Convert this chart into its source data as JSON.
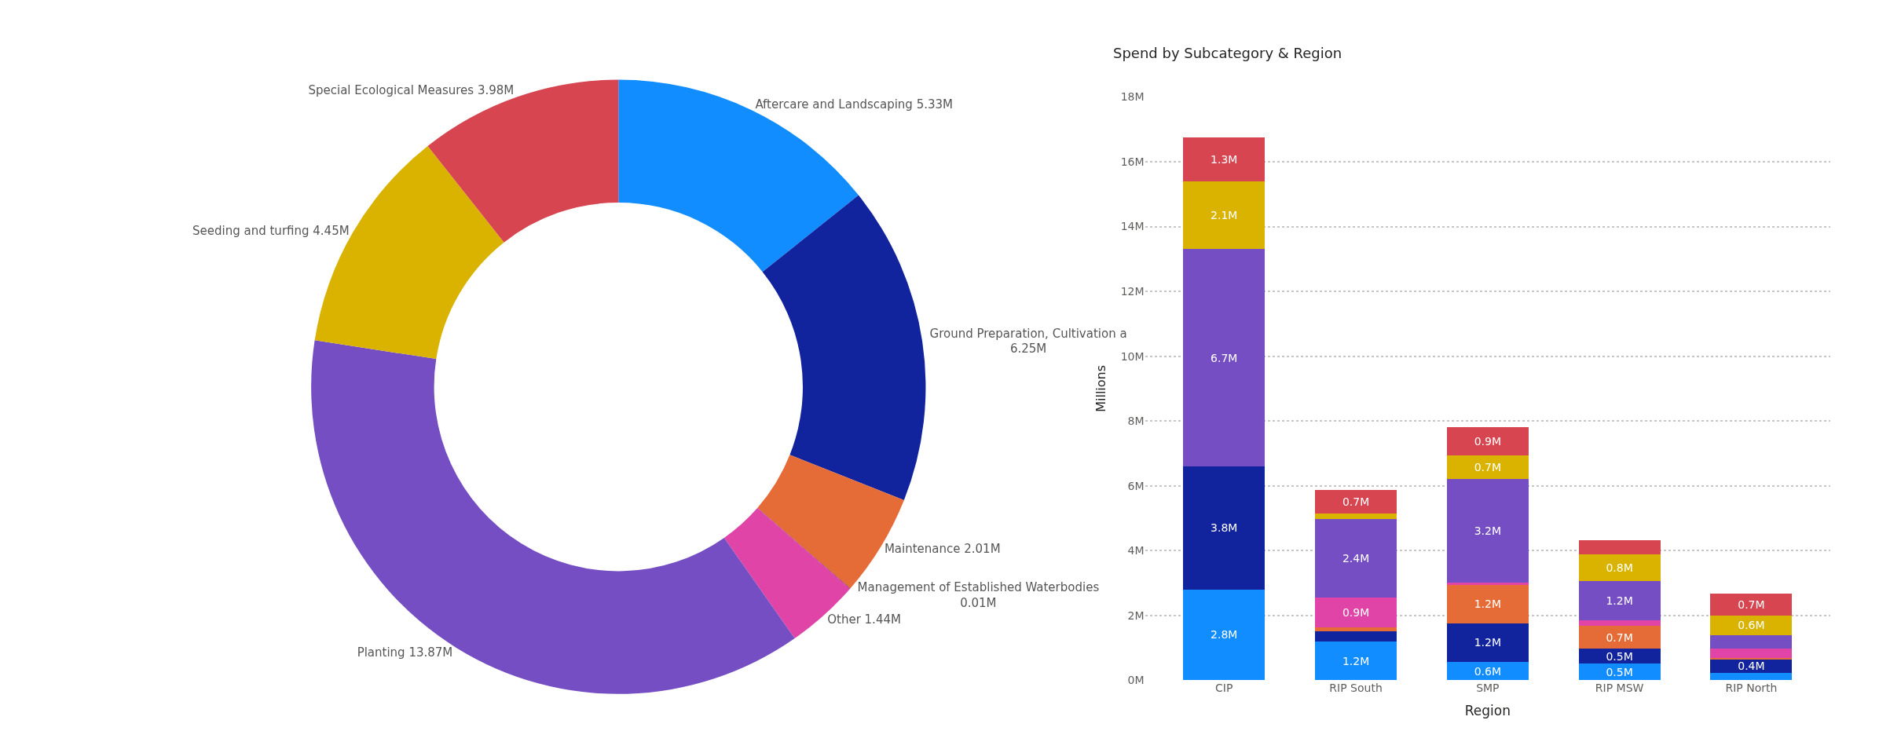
{
  "chart_data": [
    {
      "type": "donut",
      "categories": [
        "Aftercare and Landscaping",
        "Ground Preparation, Cultivation a",
        "Maintenance",
        "Management of Established Waterbodies",
        "Other",
        "Planting",
        "Seeding and turfing",
        "Special Ecological Measures"
      ],
      "values": [
        5.33,
        6.25,
        2.01,
        0.01,
        1.44,
        13.87,
        4.45,
        3.98
      ],
      "value_labels": [
        "5.33M",
        "6.25M",
        "2.01M",
        "0.01M",
        "1.44M",
        "13.87M",
        "4.45M",
        "3.98M"
      ],
      "colors": [
        "#118dff",
        "#12239e",
        "#e66c37",
        "#6b007b",
        "#e044a7",
        "#744ec2",
        "#d9b300",
        "#d64550"
      ]
    },
    {
      "type": "bar",
      "title": "Spend by Subcategory & Region",
      "xlabel": "Region",
      "ylabel": "Millions",
      "stacked": true,
      "categories": [
        "CIP",
        "RIP South",
        "SMP",
        "RIP MSW",
        "RIP North"
      ],
      "series": [
        {
          "color": "#118dff",
          "values": [
            2.8,
            1.2,
            0.56,
            0.51,
            0.22
          ],
          "value_labels": [
            "2.8M",
            "1.2M",
            "0.6M",
            "0.5M",
            null
          ]
        },
        {
          "color": "#12239e",
          "values": [
            3.8,
            0.3,
            1.2,
            0.46,
            0.44
          ],
          "value_labels": [
            "3.8M",
            null,
            "1.2M",
            "0.5M",
            "0.4M"
          ]
        },
        {
          "color": "#e66c37",
          "values": [
            0,
            0.12,
            1.17,
            0.71,
            0.03
          ],
          "value_labels": [
            null,
            null,
            "1.2M",
            "0.7M",
            null
          ]
        },
        {
          "color": "#e044a7",
          "values": [
            0,
            0.93,
            0.08,
            0.17,
            0.29
          ],
          "value_labels": [
            null,
            "0.9M",
            null,
            null,
            null
          ]
        },
        {
          "color": "#744ec2",
          "values": [
            6.7,
            2.42,
            3.2,
            1.2,
            0.41
          ],
          "value_labels": [
            "6.7M",
            "2.4M",
            "3.2M",
            "1.2M",
            null
          ]
        },
        {
          "color": "#d9b300",
          "values": [
            2.1,
            0.17,
            0.72,
            0.83,
            0.61
          ],
          "value_labels": [
            "2.1M",
            null,
            "0.7M",
            "0.8M",
            "0.6M"
          ]
        },
        {
          "color": "#d64550",
          "values": [
            1.35,
            0.74,
            0.88,
            0.43,
            0.67
          ],
          "value_labels": [
            "1.3M",
            "0.7M",
            "0.9M",
            null,
            "0.7M"
          ]
        }
      ],
      "ylim": [
        0,
        18
      ],
      "yticks": [
        {
          "value": 0,
          "label": "0M"
        },
        {
          "value": 2,
          "label": "2M"
        },
        {
          "value": 4,
          "label": "4M"
        },
        {
          "value": 6,
          "label": "6M"
        },
        {
          "value": 8,
          "label": "8M"
        },
        {
          "value": 10,
          "label": "10M"
        },
        {
          "value": 12,
          "label": "12M"
        },
        {
          "value": 14,
          "label": "14M"
        },
        {
          "value": 16,
          "label": "16M"
        },
        {
          "value": 18,
          "label": "18M"
        }
      ],
      "grid": "y"
    }
  ]
}
